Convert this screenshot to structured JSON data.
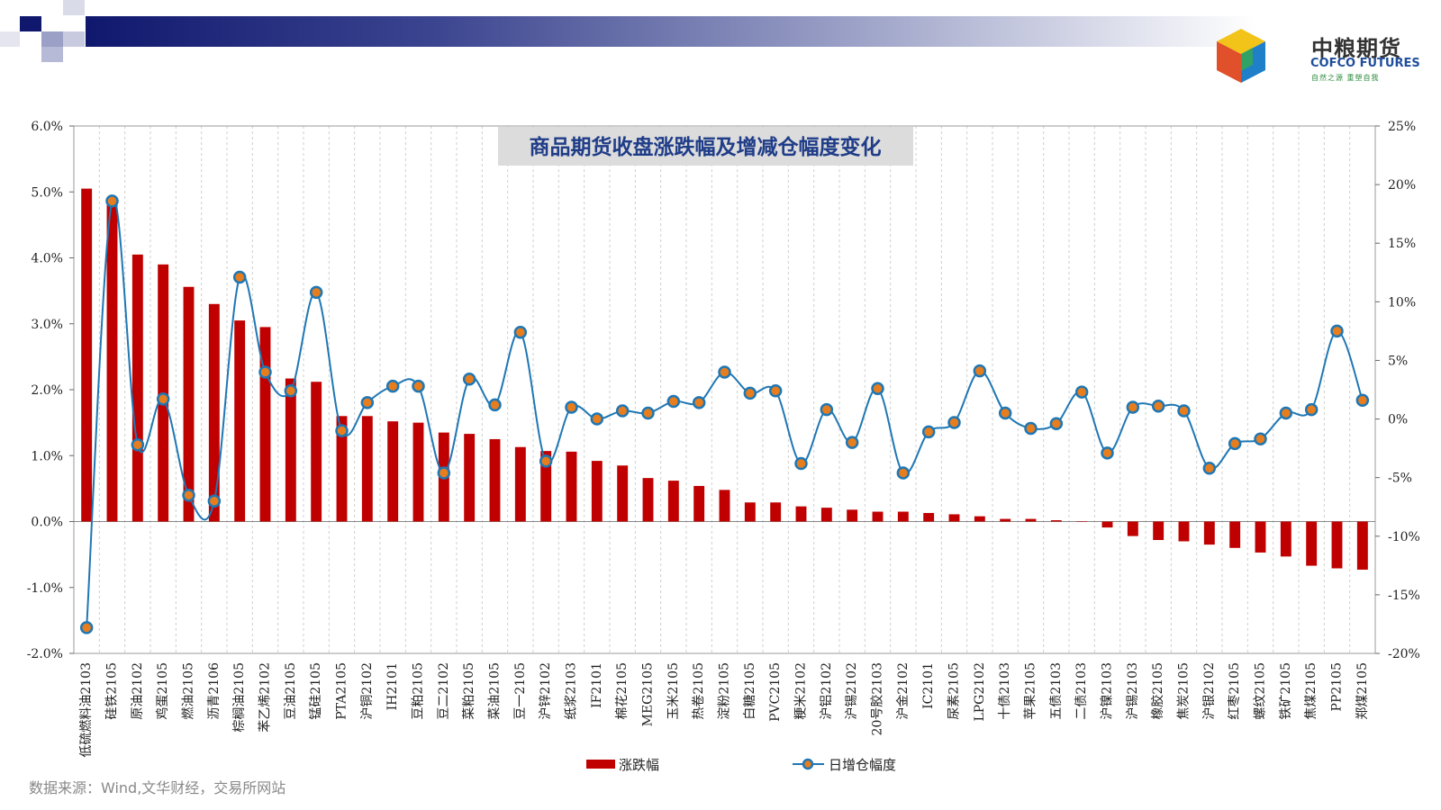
{
  "branding": {
    "name_cn": "中粮期货",
    "name_en": "COFCO FUTURES",
    "slogan": "自然之源  重塑自我"
  },
  "source_note": "数据来源：Wind,文华财经，交易所网站",
  "chart_data": {
    "type": "bar+line",
    "title": "商品期货收盘涨跌幅及增减仓幅度变化",
    "categories": [
      "低硫燃料油2103",
      "硅铁2105",
      "原油2102",
      "鸡蛋2105",
      "燃油2105",
      "沥青2106",
      "棕榈油2105",
      "苯乙烯2102",
      "豆油2105",
      "锰硅2105",
      "PTA2105",
      "沪铜2102",
      "IH2101",
      "豆粕2105",
      "豆二2102",
      "菜粕2105",
      "菜油2105",
      "豆一2105",
      "沪锌2102",
      "纸浆2103",
      "IF2101",
      "棉花2105",
      "MEG2105",
      "玉米2105",
      "热卷2105",
      "淀粉2105",
      "白糖2105",
      "PVC2105",
      "粳米2102",
      "沪铝2102",
      "沪锡2102",
      "20号胶2103",
      "沪金2102",
      "IC2101",
      "尿素2105",
      "LPG2102",
      "十债2103",
      "苹果2105",
      "五债2103",
      "二债2103",
      "沪镍2103",
      "沪锡2103",
      "橡胶2105",
      "焦炭2105",
      "沪银2102",
      "红枣2105",
      "螺纹2105",
      "铁矿2105",
      "焦煤2105",
      "PP2105",
      "郑煤2105"
    ],
    "series": [
      {
        "name": "涨跌幅",
        "type": "bar",
        "axis": "left",
        "color": "#c00000",
        "values": [
          5.05,
          4.88,
          4.05,
          3.9,
          3.56,
          3.3,
          3.05,
          2.95,
          2.17,
          2.12,
          1.6,
          1.6,
          1.52,
          1.5,
          1.35,
          1.33,
          1.25,
          1.13,
          1.07,
          1.06,
          0.92,
          0.85,
          0.66,
          0.62,
          0.54,
          0.48,
          0.29,
          0.29,
          0.23,
          0.21,
          0.18,
          0.15,
          0.15,
          0.13,
          0.11,
          0.08,
          0.04,
          0.04,
          0.02,
          0.0,
          -0.09,
          -0.22,
          -0.28,
          -0.3,
          -0.35,
          -0.4,
          -0.47,
          -0.53,
          -0.67,
          -0.71,
          -0.73
        ]
      },
      {
        "name": "日增仓幅度",
        "type": "line",
        "axis": "right",
        "color": "#1f77b4",
        "marker_color": "#e87d1e",
        "values": [
          -17.8,
          18.6,
          -2.2,
          1.7,
          -6.5,
          -7.0,
          12.1,
          4.0,
          2.4,
          10.8,
          -1.0,
          1.4,
          2.8,
          2.8,
          -4.6,
          3.4,
          1.2,
          7.4,
          -3.6,
          1.0,
          0.0,
          0.7,
          0.5,
          1.5,
          1.4,
          4.0,
          2.2,
          2.4,
          -3.8,
          0.8,
          -2.0,
          2.6,
          -4.6,
          -1.1,
          -0.3,
          4.1,
          0.5,
          -0.8,
          -0.4,
          2.3,
          -2.9,
          1.0,
          1.1,
          0.7,
          -4.2,
          -2.1,
          -1.7,
          0.5,
          0.8,
          7.5,
          1.6
        ]
      }
    ],
    "y_left": {
      "min": -2.0,
      "max": 6.0,
      "step": 1.0,
      "ticks": [
        "-2.0%",
        "-1.0%",
        "0.0%",
        "1.0%",
        "2.0%",
        "3.0%",
        "4.0%",
        "5.0%",
        "6.0%"
      ]
    },
    "y_right": {
      "min": -20,
      "max": 25,
      "step": 5,
      "ticks": [
        "-20%",
        "-15%",
        "-10%",
        "-5%",
        "0%",
        "5%",
        "10%",
        "15%",
        "20%",
        "25%"
      ]
    },
    "grid": "vertical dashed",
    "legend_position": "bottom"
  }
}
